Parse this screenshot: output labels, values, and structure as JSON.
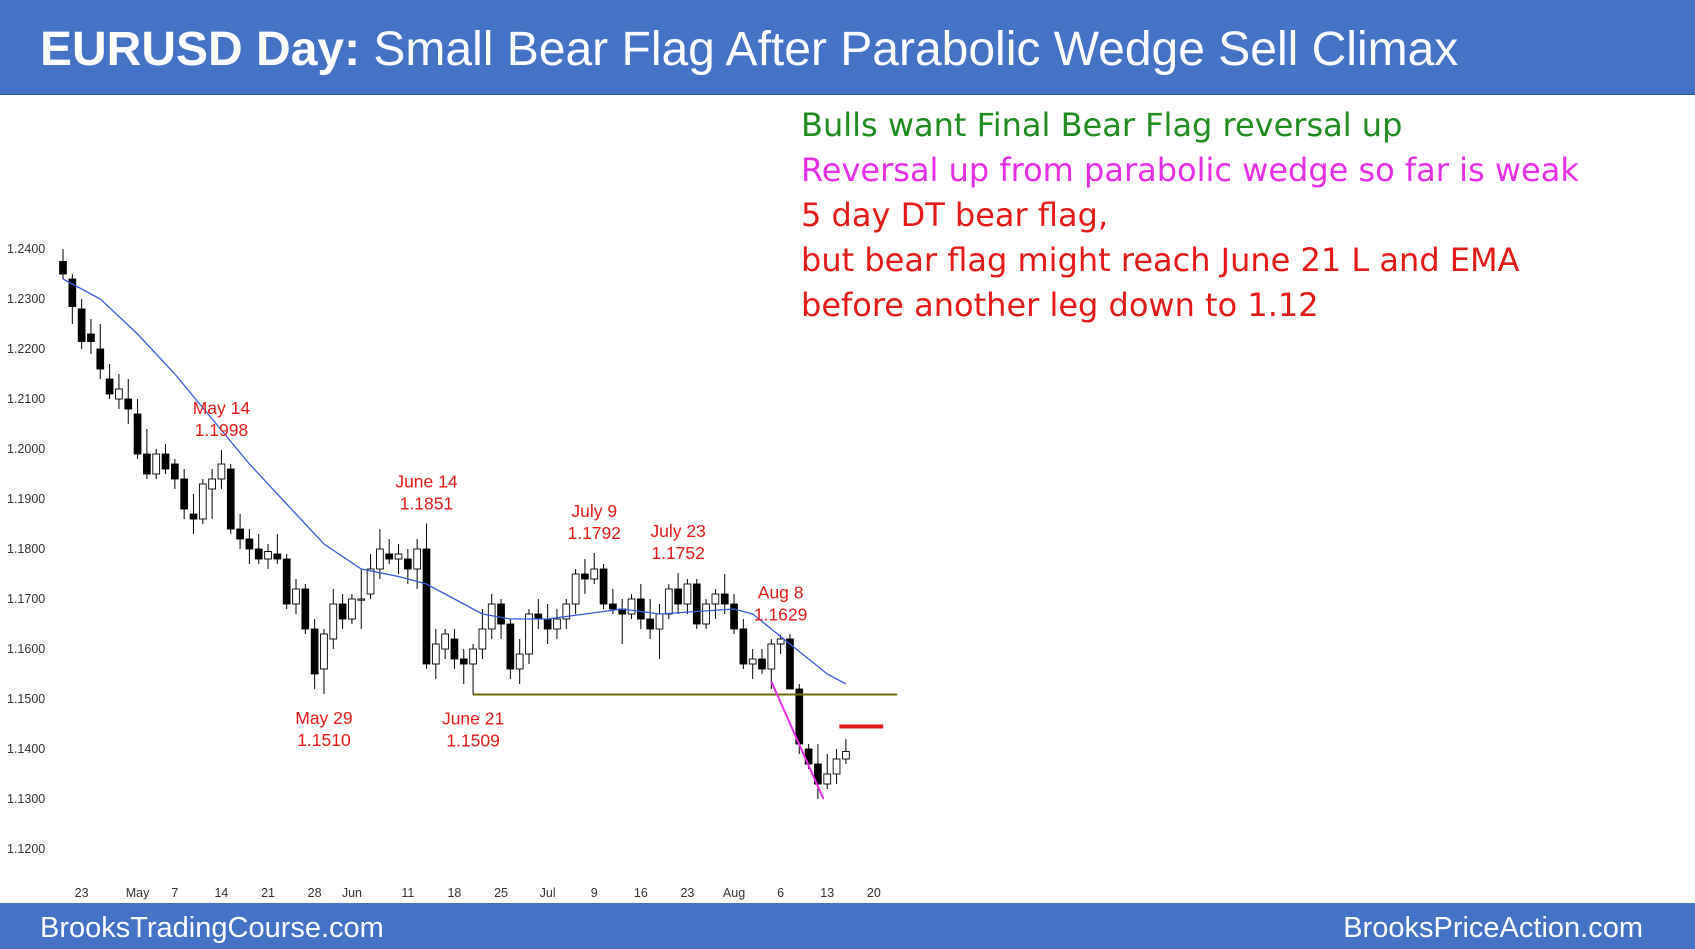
{
  "header": {
    "title_bold": "EURUSD Day:",
    "title_rest": "Small Bear Flag After Parabolic Wedge Sell Climax"
  },
  "footer": {
    "left": "BrooksTradingCourse.com",
    "right": "BrooksPriceAction.com"
  },
  "annotations": [
    {
      "text": "Bulls want Final Bear Flag reversal up",
      "color": "#1e8c1e"
    },
    {
      "text": "Reversal up from parabolic wedge so far is weak",
      "color": "#e62ee6"
    },
    {
      "text": "5 day DT bear flag,",
      "color": "#e61919"
    },
    {
      "text": "but bear flag might reach June 21 L and EMA",
      "color": "#e61919"
    },
    {
      "text": "before another leg down to 1.12",
      "color": "#e61919"
    }
  ],
  "colors": {
    "bull_candle": "#ffffff",
    "bear_candle": "#000000",
    "ema": "#3a5bd9",
    "support_line": "#6b6b00",
    "label": "#e61919",
    "trendline": "#e62ee6",
    "resistance": "#e61919"
  },
  "chart_data": {
    "type": "candlestick",
    "title": "",
    "ylim": [
      1.118,
      1.2425
    ],
    "y_ticks": [
      "1.2400",
      "1.2300",
      "1.2200",
      "1.2100",
      "1.2000",
      "1.1900",
      "1.1800",
      "1.1700",
      "1.1600",
      "1.1500",
      "1.1400",
      "1.1300",
      "1.1200"
    ],
    "x_ticks": [
      {
        "label": "23",
        "bar": 2
      },
      {
        "label": "May",
        "bar": 8
      },
      {
        "label": "7",
        "bar": 12
      },
      {
        "label": "14",
        "bar": 17
      },
      {
        "label": "21",
        "bar": 22
      },
      {
        "label": "28",
        "bar": 27
      },
      {
        "label": "Jun",
        "bar": 31
      },
      {
        "label": "11",
        "bar": 37
      },
      {
        "label": "18",
        "bar": 42
      },
      {
        "label": "25",
        "bar": 47
      },
      {
        "label": "Jul",
        "bar": 52
      },
      {
        "label": "9",
        "bar": 57
      },
      {
        "label": "16",
        "bar": 62
      },
      {
        "label": "23",
        "bar": 67
      },
      {
        "label": "Aug",
        "bar": 72
      },
      {
        "label": "6",
        "bar": 77
      },
      {
        "label": "13",
        "bar": 82
      },
      {
        "label": "20",
        "bar": 87
      }
    ],
    "ohlc": [
      [
        1.2375,
        1.24,
        1.234,
        1.235
      ],
      [
        1.234,
        1.235,
        1.225,
        1.2285
      ],
      [
        1.228,
        1.23,
        1.22,
        1.2215
      ],
      [
        1.223,
        1.226,
        1.219,
        1.2215
      ],
      [
        1.22,
        1.225,
        1.214,
        1.216
      ],
      [
        1.214,
        1.217,
        1.21,
        1.211
      ],
      [
        1.21,
        1.215,
        1.208,
        1.212
      ],
      [
        1.21,
        1.214,
        1.205,
        1.208
      ],
      [
        1.207,
        1.21,
        1.198,
        1.199
      ],
      [
        1.199,
        1.204,
        1.194,
        1.195
      ],
      [
        1.195,
        1.2,
        1.194,
        1.199
      ],
      [
        1.199,
        1.201,
        1.195,
        1.196
      ],
      [
        1.197,
        1.198,
        1.192,
        1.194
      ],
      [
        1.194,
        1.196,
        1.186,
        1.188
      ],
      [
        1.187,
        1.191,
        1.183,
        1.186
      ],
      [
        1.186,
        1.194,
        1.185,
        1.193
      ],
      [
        1.192,
        1.196,
        1.186,
        1.194
      ],
      [
        1.194,
        1.1998,
        1.192,
        1.197
      ],
      [
        1.196,
        1.197,
        1.183,
        1.184
      ],
      [
        1.184,
        1.187,
        1.18,
        1.182
      ],
      [
        1.182,
        1.184,
        1.177,
        1.18
      ],
      [
        1.18,
        1.183,
        1.177,
        1.178
      ],
      [
        1.178,
        1.181,
        1.176,
        1.1795
      ],
      [
        1.179,
        1.183,
        1.177,
        1.178
      ],
      [
        1.178,
        1.179,
        1.168,
        1.169
      ],
      [
        1.169,
        1.174,
        1.167,
        1.172
      ],
      [
        1.172,
        1.173,
        1.163,
        1.164
      ],
      [
        1.164,
        1.166,
        1.152,
        1.155
      ],
      [
        1.156,
        1.164,
        1.151,
        1.163
      ],
      [
        1.162,
        1.172,
        1.16,
        1.169
      ],
      [
        1.169,
        1.171,
        1.164,
        1.166
      ],
      [
        1.166,
        1.171,
        1.165,
        1.17
      ],
      [
        1.17,
        1.176,
        1.164,
        1.17
      ],
      [
        1.171,
        1.179,
        1.17,
        1.176
      ],
      [
        1.176,
        1.184,
        1.174,
        1.18
      ],
      [
        1.179,
        1.182,
        1.177,
        1.178
      ],
      [
        1.178,
        1.181,
        1.175,
        1.179
      ],
      [
        1.178,
        1.18,
        1.173,
        1.176
      ],
      [
        1.176,
        1.182,
        1.172,
        1.18
      ],
      [
        1.18,
        1.1851,
        1.156,
        1.157
      ],
      [
        1.157,
        1.164,
        1.154,
        1.161
      ],
      [
        1.16,
        1.164,
        1.158,
        1.163
      ],
      [
        1.162,
        1.164,
        1.156,
        1.158
      ],
      [
        1.158,
        1.16,
        1.153,
        1.157
      ],
      [
        1.157,
        1.161,
        1.1509,
        1.16
      ],
      [
        1.16,
        1.168,
        1.158,
        1.164
      ],
      [
        1.164,
        1.171,
        1.162,
        1.169
      ],
      [
        1.169,
        1.17,
        1.162,
        1.165
      ],
      [
        1.165,
        1.166,
        1.154,
        1.156
      ],
      [
        1.156,
        1.162,
        1.153,
        1.159
      ],
      [
        1.159,
        1.168,
        1.157,
        1.167
      ],
      [
        1.167,
        1.17,
        1.164,
        1.166
      ],
      [
        1.166,
        1.169,
        1.161,
        1.164
      ],
      [
        1.164,
        1.168,
        1.162,
        1.166
      ],
      [
        1.166,
        1.17,
        1.164,
        1.169
      ],
      [
        1.169,
        1.176,
        1.167,
        1.175
      ],
      [
        1.175,
        1.178,
        1.171,
        1.174
      ],
      [
        1.174,
        1.1792,
        1.173,
        1.176
      ],
      [
        1.176,
        1.177,
        1.168,
        1.169
      ],
      [
        1.169,
        1.172,
        1.167,
        1.168
      ],
      [
        1.168,
        1.17,
        1.161,
        1.167
      ],
      [
        1.167,
        1.171,
        1.166,
        1.17
      ],
      [
        1.17,
        1.173,
        1.164,
        1.166
      ],
      [
        1.166,
        1.17,
        1.162,
        1.164
      ],
      [
        1.164,
        1.169,
        1.158,
        1.167
      ],
      [
        1.167,
        1.173,
        1.166,
        1.172
      ],
      [
        1.172,
        1.1752,
        1.167,
        1.169
      ],
      [
        1.169,
        1.174,
        1.167,
        1.173
      ],
      [
        1.173,
        1.174,
        1.164,
        1.165
      ],
      [
        1.165,
        1.17,
        1.164,
        1.169
      ],
      [
        1.169,
        1.172,
        1.166,
        1.171
      ],
      [
        1.171,
        1.175,
        1.167,
        1.169
      ],
      [
        1.169,
        1.171,
        1.163,
        1.164
      ],
      [
        1.164,
        1.166,
        1.156,
        1.157
      ],
      [
        1.157,
        1.16,
        1.154,
        1.158
      ],
      [
        1.158,
        1.16,
        1.155,
        1.156
      ],
      [
        1.156,
        1.162,
        1.152,
        1.161
      ],
      [
        1.161,
        1.1629,
        1.159,
        1.162
      ],
      [
        1.162,
        1.163,
        1.152,
        1.152
      ],
      [
        1.152,
        1.153,
        1.139,
        1.141
      ],
      [
        1.14,
        1.141,
        1.136,
        1.137
      ],
      [
        1.137,
        1.141,
        1.13,
        1.133
      ],
      [
        1.133,
        1.139,
        1.132,
        1.135
      ],
      [
        1.135,
        1.14,
        1.133,
        1.138
      ],
      [
        1.138,
        1.142,
        1.137,
        1.1395
      ]
    ],
    "ema": [
      [
        1.234,
        0
      ],
      [
        1.23,
        4
      ],
      [
        1.223,
        8
      ],
      [
        1.215,
        12
      ],
      [
        1.206,
        16
      ],
      [
        1.197,
        20
      ],
      [
        1.189,
        24
      ],
      [
        1.181,
        28
      ],
      [
        1.176,
        32
      ],
      [
        1.1745,
        36
      ],
      [
        1.173,
        39
      ],
      [
        1.17,
        42
      ],
      [
        1.167,
        45
      ],
      [
        1.166,
        48
      ],
      [
        1.166,
        52
      ],
      [
        1.167,
        56
      ],
      [
        1.168,
        60
      ],
      [
        1.167,
        64
      ],
      [
        1.1675,
        68
      ],
      [
        1.168,
        72
      ],
      [
        1.167,
        74
      ],
      [
        1.164,
        76
      ],
      [
        1.161,
        78
      ],
      [
        1.158,
        80
      ],
      [
        1.155,
        82
      ],
      [
        1.153,
        84
      ]
    ],
    "labels": [
      {
        "bar": 17,
        "name": "May 14",
        "value": "1.1998",
        "position": "above"
      },
      {
        "bar": 39,
        "name": "June 14",
        "value": "1.1851",
        "position": "above"
      },
      {
        "bar": 57,
        "name": "July 9",
        "value": "1.1792",
        "position": "above"
      },
      {
        "bar": 66,
        "name": "July 23",
        "value": "1.1752",
        "position": "above"
      },
      {
        "bar": 77,
        "name": "Aug 8",
        "value": "1.1629",
        "position": "above"
      },
      {
        "bar": 28,
        "name": "May 29",
        "value": "1.1510",
        "position": "below"
      },
      {
        "bar": 44,
        "name": "June 21",
        "value": "1.1509",
        "position": "below"
      }
    ],
    "lines": [
      {
        "kind": "support",
        "price": 1.1509,
        "from_bar": 44,
        "to_bar": 89.5
      },
      {
        "kind": "resistance",
        "price": 1.1445,
        "from_bar": 83.3,
        "to_bar": 88
      },
      {
        "kind": "wedge-trendline",
        "from": [
          76,
          1.1535
        ],
        "to": [
          81.6,
          1.13
        ]
      }
    ]
  }
}
